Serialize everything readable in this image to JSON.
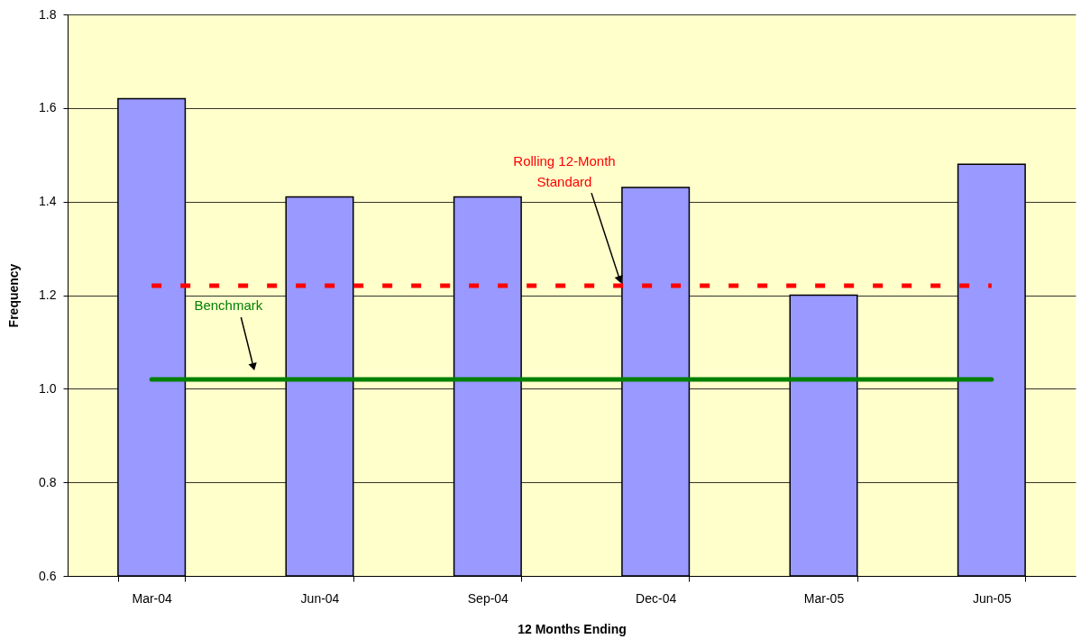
{
  "chart_data": {
    "type": "bar",
    "xlabel": "12 Months Ending",
    "ylabel": "Frequency",
    "categories": [
      "Mar-04",
      "Jun-04",
      "Sep-04",
      "Dec-04",
      "Mar-05",
      "Jun-05"
    ],
    "series": [
      {
        "color": "#9999ff",
        "values": [
          1.62,
          1.41,
          1.41,
          1.43,
          1.2,
          1.48
        ]
      },
      {
        "type": "line",
        "name": "Rolling 12-Month Standard",
        "color": "#ff0000",
        "line_style": "dashed",
        "values": [
          1.22,
          1.22,
          1.22,
          1.22,
          1.22,
          1.22
        ]
      },
      {
        "type": "line",
        "name": "Benchmark",
        "color": "#008000",
        "line_style": "solid",
        "values": [
          1.02,
          1.02,
          1.02,
          1.02,
          1.02,
          1.02
        ]
      }
    ],
    "ylim": [
      0.6,
      1.8
    ],
    "yticks": [
      0.6,
      0.8,
      {
        "value": 1.0,
        "label": "1.0"
      },
      1.2,
      1.4,
      1.6,
      1.8
    ],
    "grid": "y"
  }
}
